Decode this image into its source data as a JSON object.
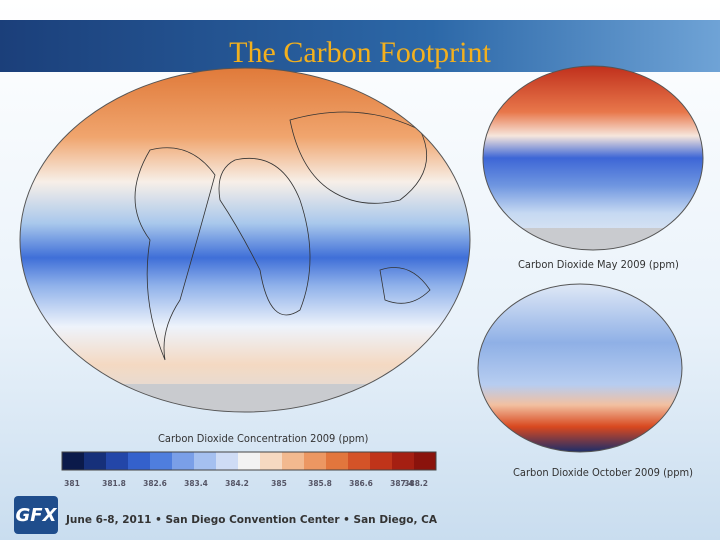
{
  "header": {
    "title": "The Carbon Footprint"
  },
  "main_map": {
    "caption": "Carbon Dioxide Concentration 2009 (ppm)",
    "colorbar_labels": [
      "381",
      "381.8",
      "382.6",
      "383.4",
      "384.2",
      "385",
      "385.8",
      "386.6",
      "387.4",
      "388.2"
    ]
  },
  "may_map": {
    "caption": "Carbon Dioxide May 2009 (ppm)"
  },
  "october_map": {
    "caption": "Carbon Dioxide October 2009 (ppm)"
  },
  "footer": {
    "logo": "GFX",
    "event": "June 6-8, 2011 • San Diego Convention Center • San Diego, CA"
  }
}
